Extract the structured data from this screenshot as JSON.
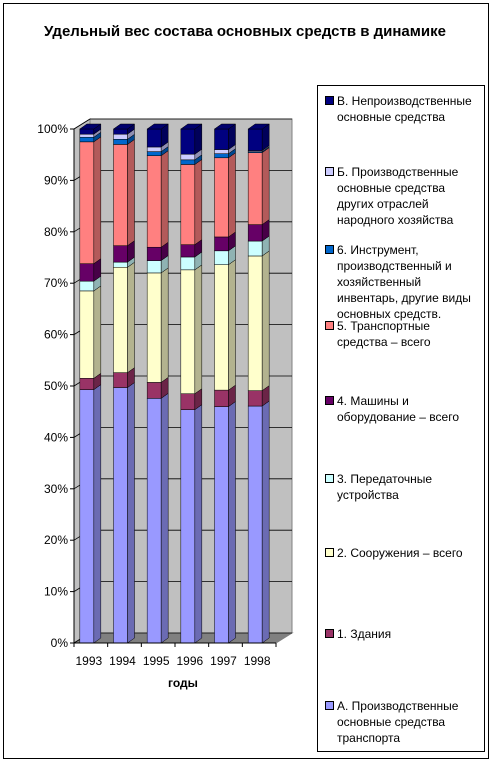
{
  "chart_data": {
    "type": "bar",
    "stacked": "percent",
    "title": "Удельный вес состава основных средств в динамике",
    "xlabel": "годы",
    "ylabel": "",
    "ylim": [
      0,
      100
    ],
    "yticks": [
      "0%",
      "10%",
      "20%",
      "30%",
      "40%",
      "50%",
      "60%",
      "70%",
      "80%",
      "90%",
      "100%"
    ],
    "grid": true,
    "legend_position": "right",
    "categories": [
      "1993",
      "1994",
      "1995",
      "1996",
      "1997",
      "1998"
    ],
    "series": [
      {
        "name": "А. Производственные основные средства транспорта",
        "color": "#9999ff",
        "values": [
          49.3,
          49.7,
          47.6,
          45.4,
          46.0,
          46.1
        ]
      },
      {
        "name": "1. Здания",
        "color": "#993366",
        "values": [
          2.2,
          2.9,
          3.1,
          3.1,
          3.2,
          3.0
        ]
      },
      {
        "name": "2. Сооружения – всего",
        "color": "#ffffcc",
        "values": [
          17.0,
          20.5,
          21.3,
          24.1,
          24.4,
          26.2
        ]
      },
      {
        "name": "3. Передаточные устройства",
        "color": "#ccffff",
        "values": [
          1.9,
          1.0,
          2.4,
          2.5,
          2.7,
          2.9
        ]
      },
      {
        "name": "4. Машины и оборудование – всего",
        "color": "#660066",
        "values": [
          3.4,
          3.2,
          2.6,
          2.4,
          2.7,
          3.2
        ]
      },
      {
        "name": "5. Транспортные средства – всего",
        "color": "#ff8080",
        "values": [
          23.7,
          19.7,
          17.8,
          15.6,
          15.4,
          14.0
        ]
      },
      {
        "name": "6. Инструмент, производственный и хозяйственный инвентарь, другие виды основных средств.",
        "color": "#0066cc",
        "values": [
          0.9,
          1.0,
          0.8,
          0.9,
          0.8,
          0.2
        ]
      },
      {
        "name": "Б. Производственные основные средства других отраслей народного хозяйства",
        "color": "#ccccff",
        "values": [
          0.6,
          1.0,
          0.9,
          1.1,
          0.8,
          0.2
        ]
      },
      {
        "name": "В. Непроизводственные основные средства",
        "color": "#000080",
        "values": [
          1.0,
          1.0,
          3.5,
          4.9,
          4.0,
          4.2
        ]
      }
    ]
  }
}
